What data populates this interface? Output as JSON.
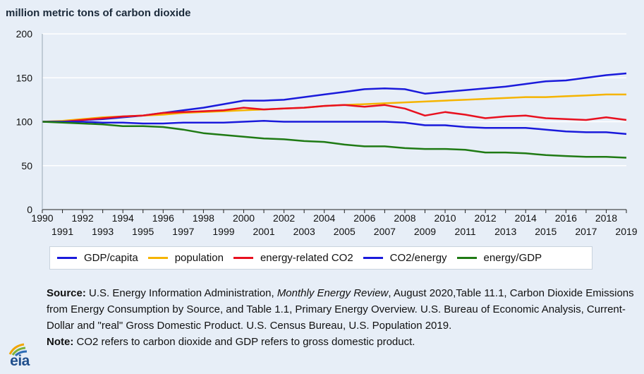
{
  "chart_data": {
    "type": "line",
    "ylabel": "million metric tons of carbon dioxide",
    "ylim": [
      0,
      200
    ],
    "yticks": [
      "0",
      "50",
      "100",
      "150",
      "200"
    ],
    "x": [
      1990,
      1991,
      1992,
      1993,
      1994,
      1995,
      1996,
      1997,
      1998,
      1999,
      2000,
      2001,
      2002,
      2003,
      2004,
      2005,
      2006,
      2007,
      2008,
      2009,
      2010,
      2011,
      2012,
      2013,
      2014,
      2015,
      2016,
      2017,
      2018,
      2019
    ],
    "xticks_top": [
      "1990",
      "1992",
      "1994",
      "1996",
      "1998",
      "2000",
      "2002",
      "2004",
      "2006",
      "2008",
      "2010",
      "2012",
      "2014",
      "2016",
      "2018"
    ],
    "xticks_bottom": [
      "1991",
      "1993",
      "1995",
      "1997",
      "1999",
      "2001",
      "2003",
      "2005",
      "2007",
      "2009",
      "2011",
      "2013",
      "2015",
      "2017",
      "2019"
    ],
    "series": [
      {
        "name": "GDP/capita",
        "color": "#1a1adb",
        "values": [
          100,
          100,
          102,
          103,
          105,
          107,
          110,
          113,
          116,
          120,
          124,
          124,
          125,
          128,
          131,
          134,
          137,
          138,
          137,
          132,
          134,
          136,
          138,
          140,
          143,
          146,
          147,
          150,
          153,
          155
        ]
      },
      {
        "name": "population",
        "color": "#f5b400",
        "values": [
          100,
          101,
          103,
          105,
          106,
          107,
          108,
          110,
          111,
          112,
          113,
          114,
          115,
          116,
          118,
          119,
          120,
          121,
          122,
          123,
          124,
          125,
          126,
          127,
          128,
          128,
          129,
          130,
          131,
          131
        ]
      },
      {
        "name": "energy-related CO2",
        "color": "#e8101f",
        "values": [
          100,
          100,
          102,
          104,
          106,
          107,
          110,
          111,
          112,
          113,
          116,
          114,
          115,
          116,
          118,
          119,
          117,
          119,
          115,
          107,
          111,
          108,
          104,
          106,
          107,
          104,
          103,
          102,
          105,
          102
        ]
      },
      {
        "name": "CO2/energy",
        "color": "#1a1adb",
        "values": [
          100,
          100,
          100,
          99,
          99,
          98,
          98,
          99,
          99,
          99,
          100,
          101,
          100,
          100,
          100,
          100,
          100,
          100,
          99,
          96,
          96,
          94,
          93,
          93,
          93,
          91,
          89,
          88,
          88,
          86
        ]
      },
      {
        "name": "energy/GDP",
        "color": "#1f7a14",
        "values": [
          100,
          99,
          98,
          97,
          95,
          95,
          94,
          91,
          87,
          85,
          83,
          81,
          80,
          78,
          77,
          74,
          72,
          72,
          70,
          69,
          69,
          68,
          65,
          65,
          64,
          62,
          61,
          60,
          60,
          59
        ]
      }
    ]
  },
  "legend": [
    {
      "label": "GDP/capita",
      "color": "#1a1adb"
    },
    {
      "label": "population",
      "color": "#f5b400"
    },
    {
      "label": "energy-related CO2",
      "color": "#e8101f"
    },
    {
      "label": "CO2/energy",
      "color": "#1a1adb"
    },
    {
      "label": "energy/GDP",
      "color": "#1f7a14"
    }
  ],
  "source": {
    "prefix": "Source:",
    "text_1": " U.S. Energy Information Administration, ",
    "publication": "Monthly Energy Review",
    "text_2": ", August 2020,Table 11.1, Carbon Dioxide Emissions from Energy Consumption by Source, and Table 1.1, Primary Energy Overview. U.S. Bureau of Economic Analysis, Current-Dollar and \"real\" Gross Domestic Product. U.S. Census Bureau, U.S. Population 2019."
  },
  "note": {
    "prefix": "Note:",
    "text": " CO2 refers to carbon dioxide and GDP refers to gross domestic product."
  },
  "logo": {
    "text": "eia"
  },
  "colors": {
    "background": "#e7eef7",
    "grid": "#ffffff",
    "axis": "#222222"
  }
}
